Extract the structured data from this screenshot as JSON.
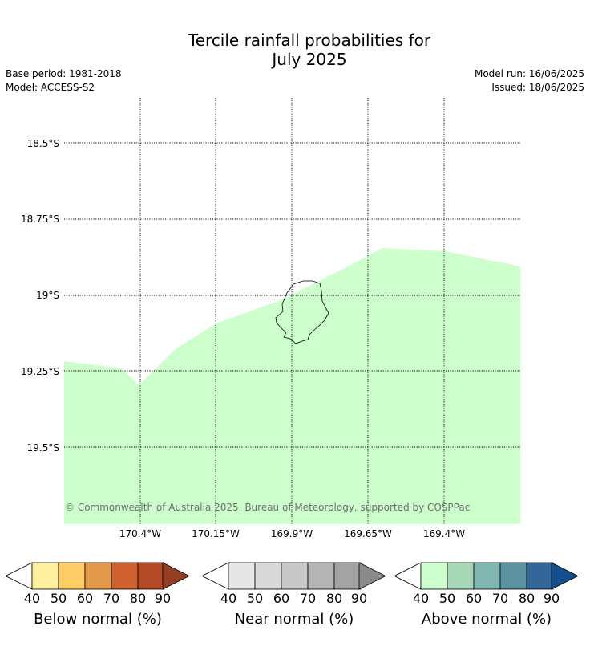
{
  "title": {
    "line1": "Tercile rainfall probabilities for",
    "line2": "July 2025"
  },
  "meta": {
    "base_period": "Base period: 1981-2018",
    "model": "Model: ACCESS-S2",
    "model_run": "Model run: 16/06/2025",
    "issued": "Issued: 18/06/2025"
  },
  "map": {
    "lat_labels": [
      "18.5°S",
      "18.75°S",
      "19°S",
      "19.25°S",
      "19.5°S"
    ],
    "lon_labels": [
      "170.4°W",
      "170.15°W",
      "169.9°W",
      "169.65°W",
      "169.4°W"
    ],
    "fill_category": "Above normal 40-50%",
    "fill_color": "#ccffcc",
    "island": "Niue",
    "copyright": "© Commonwealth of Australia 2025, Bureau of Meteorology, supported by COSPPac"
  },
  "legends": [
    {
      "label": "Below normal (%)",
      "ticks": [
        "40",
        "50",
        "60",
        "70",
        "80",
        "90"
      ],
      "colors": [
        "#fff0a0",
        "#ffcc66",
        "#e3994a",
        "#cf6230",
        "#b44a26"
      ],
      "arrow_color": "#963e21"
    },
    {
      "label": "Near normal (%)",
      "ticks": [
        "40",
        "50",
        "60",
        "70",
        "80",
        "90"
      ],
      "colors": [
        "#e6e6e6",
        "#d9d9d9",
        "#c8c8c8",
        "#b5b5b5",
        "#a3a3a3"
      ],
      "arrow_color": "#8a8a8a"
    },
    {
      "label": "Above normal (%)",
      "ticks": [
        "40",
        "50",
        "60",
        "70",
        "80",
        "90"
      ],
      "colors": [
        "#ccffcc",
        "#a8d8b8",
        "#82b6b0",
        "#5c91a0",
        "#336699"
      ],
      "arrow_color": "#124f8c"
    }
  ]
}
